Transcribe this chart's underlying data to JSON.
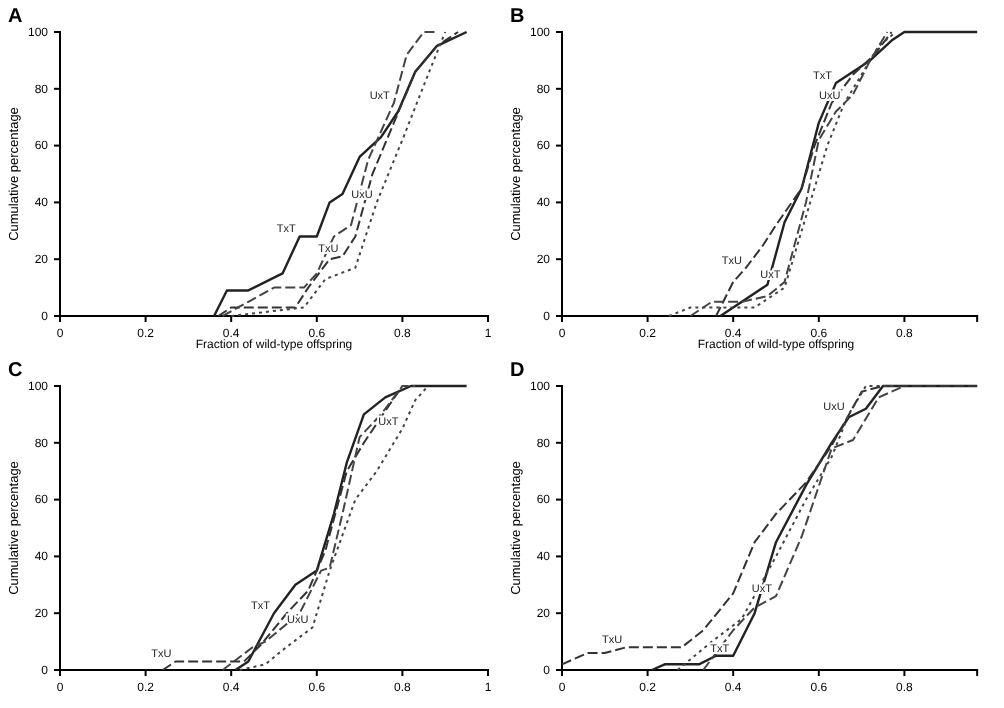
{
  "chart_data": [
    {
      "type": "line",
      "title": "A",
      "xlabel": "Fraction of wild-type offspring",
      "ylabel": "Cumulative percentage",
      "xlim": [
        0,
        1
      ],
      "xticks": [
        0,
        0.2,
        0.4,
        0.6,
        0.8,
        1
      ],
      "ylim": [
        0,
        100
      ],
      "yticks": [
        0,
        20,
        40,
        60,
        80,
        100
      ],
      "series": [
        {
          "color": "#222222",
          "line_style": "solid",
          "x": [
            0.36,
            0.39,
            0.44,
            0.52,
            0.56,
            0.6,
            0.63,
            0.66,
            0.7,
            0.75,
            0.79,
            0.83,
            0.88,
            0.95
          ],
          "values": [
            0,
            9,
            9,
            15,
            28,
            28,
            40,
            43,
            56,
            63,
            72,
            86,
            95,
            100
          ]
        },
        {
          "color": "#333333",
          "line_style": "dashed",
          "x": [
            0.37,
            0.4,
            0.55,
            0.58,
            0.63,
            0.66,
            0.69,
            0.73,
            0.78,
            0.83,
            0.88,
            0.93
          ],
          "values": [
            0,
            3,
            3,
            10,
            20,
            21,
            28,
            50,
            68,
            86,
            95,
            100
          ]
        },
        {
          "color": "#444444",
          "line_style": "dashed",
          "x": [
            0.38,
            0.44,
            0.5,
            0.57,
            0.6,
            0.64,
            0.68,
            0.72,
            0.78,
            0.81,
            0.85,
            0.88
          ],
          "values": [
            0,
            5,
            10,
            10,
            15,
            28,
            32,
            55,
            75,
            92,
            100,
            100
          ]
        },
        {
          "color": "#444444",
          "line_style": "dotted",
          "x": [
            0.4,
            0.57,
            0.62,
            0.69,
            0.74,
            0.8,
            0.86,
            0.9
          ],
          "values": [
            0,
            3,
            13,
            17,
            40,
            62,
            85,
            100
          ]
        }
      ],
      "annotations": [
        {
          "text": "TxT",
          "x": 0.56,
          "y": 28
        },
        {
          "text": "UxT",
          "x": 0.78,
          "y": 75
        },
        {
          "text": "TxU",
          "x": 0.66,
          "y": 21
        },
        {
          "text": "UxU",
          "x": 0.74,
          "y": 40
        }
      ]
    },
    {
      "type": "line",
      "title": "B",
      "xlabel": "Fraction of wild-type offspring",
      "ylabel": "Cumulative percentage",
      "xlim": [
        0,
        0.97
      ],
      "xticks": [
        0,
        0.2,
        0.4,
        0.6,
        0.8
      ],
      "ylim": [
        0,
        100
      ],
      "yticks": [
        0,
        20,
        40,
        60,
        80,
        100
      ],
      "series": [
        {
          "color": "#222222",
          "line_style": "solid",
          "x": [
            0.37,
            0.4,
            0.48,
            0.52,
            0.56,
            0.6,
            0.64,
            0.68,
            0.72,
            0.77,
            0.8,
            0.97
          ],
          "values": [
            0,
            3,
            11,
            33,
            45,
            68,
            82,
            86,
            90,
            97,
            100,
            100
          ]
        },
        {
          "color": "#333333",
          "line_style": "dashed",
          "x": [
            0.36,
            0.4,
            0.43,
            0.47,
            0.5,
            0.56,
            0.59,
            0.63,
            0.68,
            0.73,
            0.77
          ],
          "values": [
            0,
            12,
            17,
            25,
            32,
            45,
            60,
            75,
            85,
            92,
            100
          ]
        },
        {
          "color": "#444444",
          "line_style": "dashed",
          "x": [
            0.3,
            0.35,
            0.42,
            0.48,
            0.52,
            0.57,
            0.6,
            0.64,
            0.68,
            0.72,
            0.76
          ],
          "values": [
            0,
            5,
            5,
            7,
            12,
            40,
            62,
            72,
            78,
            90,
            100
          ]
        },
        {
          "color": "#444444",
          "line_style": "dotted",
          "x": [
            0.25,
            0.3,
            0.45,
            0.52,
            0.56,
            0.62,
            0.66,
            0.7,
            0.74,
            0.78
          ],
          "values": [
            0,
            3,
            3,
            10,
            30,
            60,
            75,
            85,
            95,
            100
          ]
        }
      ],
      "annotations": [
        {
          "text": "TxT",
          "x": 0.64,
          "y": 82
        },
        {
          "text": "UxU",
          "x": 0.66,
          "y": 75
        },
        {
          "text": "TxU",
          "x": 0.43,
          "y": 17
        },
        {
          "text": "UxT",
          "x": 0.52,
          "y": 12
        }
      ]
    },
    {
      "type": "line",
      "title": "C",
      "ylabel": "Cumulative percentage",
      "xlim": [
        0,
        1
      ],
      "xticks": [
        0,
        0.2,
        0.4,
        0.6,
        0.8,
        1
      ],
      "ylim": [
        0,
        100
      ],
      "yticks": [
        0,
        20,
        40,
        60,
        80,
        100
      ],
      "series": [
        {
          "color": "#222222",
          "line_style": "solid",
          "x": [
            0.41,
            0.44,
            0.5,
            0.55,
            0.6,
            0.64,
            0.67,
            0.71,
            0.76,
            0.82,
            0.95
          ],
          "values": [
            0,
            3,
            20,
            30,
            35,
            55,
            73,
            90,
            96,
            100,
            100
          ]
        },
        {
          "color": "#333333",
          "line_style": "dashed",
          "x": [
            0.24,
            0.27,
            0.43,
            0.47,
            0.53,
            0.58,
            0.62,
            0.67,
            0.71,
            0.75,
            0.8
          ],
          "values": [
            0,
            3,
            3,
            9,
            20,
            28,
            42,
            70,
            80,
            89,
            100
          ]
        },
        {
          "color": "#444444",
          "line_style": "dashed",
          "x": [
            0.38,
            0.45,
            0.48,
            0.56,
            0.61,
            0.63,
            0.66,
            0.7,
            0.75,
            0.8,
            0.83
          ],
          "values": [
            0,
            8,
            10,
            20,
            35,
            36,
            55,
            82,
            90,
            100,
            100
          ]
        },
        {
          "color": "#444444",
          "line_style": "dotted",
          "x": [
            0.42,
            0.48,
            0.52,
            0.59,
            0.63,
            0.69,
            0.74,
            0.8,
            0.83,
            0.86
          ],
          "values": [
            0,
            2,
            7,
            15,
            35,
            60,
            70,
            85,
            95,
            100
          ]
        }
      ],
      "annotations": [
        {
          "text": "TxT",
          "x": 0.5,
          "y": 20
        },
        {
          "text": "TxU",
          "x": 0.27,
          "y": 3
        },
        {
          "text": "UxU",
          "x": 0.59,
          "y": 15
        },
        {
          "text": "UxT",
          "x": 0.8,
          "y": 85
        }
      ]
    },
    {
      "type": "line",
      "title": "D",
      "ylabel": "Cumulative percentage",
      "xlim": [
        0,
        0.97
      ],
      "xticks": [
        0,
        0.2,
        0.4,
        0.6,
        0.8
      ],
      "ylim": [
        0,
        100
      ],
      "yticks": [
        0,
        20,
        40,
        60,
        80,
        100
      ],
      "series": [
        {
          "color": "#222222",
          "line_style": "solid",
          "x": [
            0.21,
            0.24,
            0.32,
            0.36,
            0.4,
            0.45,
            0.5,
            0.57,
            0.63,
            0.67,
            0.71,
            0.75,
            0.97
          ],
          "values": [
            0,
            2,
            2,
            5,
            5,
            20,
            45,
            65,
            80,
            89,
            92,
            100,
            100
          ]
        },
        {
          "color": "#333333",
          "line_style": "dashed",
          "x": [
            0,
            0.06,
            0.1,
            0.15,
            0.28,
            0.33,
            0.4,
            0.45,
            0.5,
            0.57,
            0.63,
            0.7,
            0.75,
            0.97
          ],
          "values": [
            2,
            6,
            6,
            8,
            8,
            14,
            27,
            45,
            55,
            66,
            79,
            98,
            100,
            100
          ]
        },
        {
          "color": "#444444",
          "line_style": "dashed",
          "x": [
            0.33,
            0.4,
            0.45,
            0.5,
            0.56,
            0.63,
            0.68,
            0.74,
            0.8
          ],
          "values": [
            0,
            14,
            22,
            26,
            47,
            78,
            81,
            96,
            100
          ]
        },
        {
          "color": "#444444",
          "line_style": "dotted",
          "x": [
            0.27,
            0.35,
            0.42,
            0.5,
            0.57,
            0.63,
            0.67,
            0.71,
            0.78
          ],
          "values": [
            0,
            10,
            18,
            40,
            60,
            75,
            90,
            100,
            100
          ]
        }
      ],
      "annotations": [
        {
          "text": "TxU",
          "x": 0.15,
          "y": 8
        },
        {
          "text": "TxT",
          "x": 0.4,
          "y": 5
        },
        {
          "text": "UxT",
          "x": 0.5,
          "y": 26
        },
        {
          "text": "UxU",
          "x": 0.67,
          "y": 90
        }
      ]
    }
  ]
}
